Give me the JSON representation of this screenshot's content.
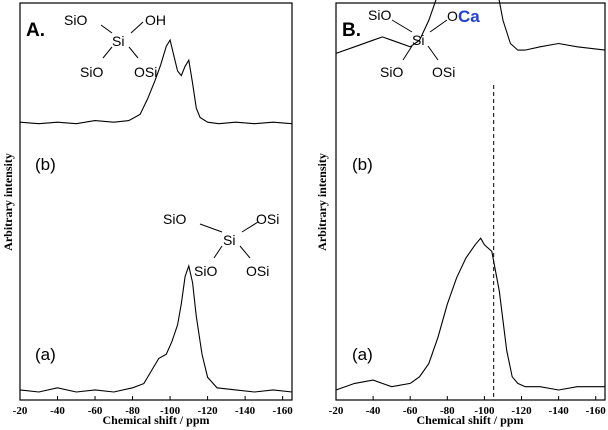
{
  "chart_data": [
    {
      "type": "line",
      "panel_label": "A.",
      "xlabel": "Chemical shift / ppm",
      "ylabel": "Arbitrary intensity",
      "xlim": [
        -20,
        -165
      ],
      "x_ticks": [
        -20,
        -40,
        -60,
        -80,
        -100,
        -120,
        -140,
        -160
      ],
      "series": [
        {
          "name": "(b)",
          "x": [
            -20,
            -30,
            -40,
            -50,
            -60,
            -70,
            -78,
            -84,
            -88,
            -92,
            -95,
            -98,
            -100,
            -102,
            -104,
            -106,
            -108,
            -110,
            -112,
            -114,
            -116,
            -120,
            -126,
            -135,
            -145,
            -155,
            -165
          ],
          "y": [
            0.47,
            0.46,
            0.47,
            0.46,
            0.48,
            0.47,
            0.48,
            0.52,
            0.62,
            0.74,
            0.84,
            0.96,
            1.0,
            0.9,
            0.8,
            0.77,
            0.83,
            0.87,
            0.72,
            0.56,
            0.5,
            0.47,
            0.46,
            0.47,
            0.46,
            0.47,
            0.46
          ]
        },
        {
          "name": "(a)",
          "x": [
            -20,
            -30,
            -40,
            -50,
            -60,
            -70,
            -80,
            -86,
            -90,
            -94,
            -98,
            -101,
            -104,
            -106,
            -108,
            -110,
            -112,
            -114,
            -117,
            -120,
            -125,
            -135,
            -145,
            -155,
            -165
          ],
          "y": [
            0.01,
            0.0,
            0.02,
            0.0,
            0.01,
            0.0,
            0.02,
            0.04,
            0.1,
            0.16,
            0.18,
            0.24,
            0.32,
            0.42,
            0.55,
            0.6,
            0.52,
            0.36,
            0.18,
            0.07,
            0.02,
            0.01,
            0.0,
            0.01,
            0.0
          ]
        }
      ],
      "structures": [
        {
          "bonds": [
            "SiO",
            "OH",
            "SiO",
            "OSi"
          ],
          "center": "Si"
        },
        {
          "bonds": [
            "SiO",
            "OSi",
            "SiO",
            "OSi"
          ],
          "center": "Si"
        }
      ]
    },
    {
      "type": "line",
      "panel_label": "B.",
      "xlabel": "Chemical shift / ppm",
      "ylabel": "Arbitrary intensity",
      "xlim": [
        -20,
        -165
      ],
      "x_ticks": [
        -20,
        -40,
        -60,
        -80,
        -100,
        -120,
        -140,
        -160
      ],
      "reference_line_x": -105,
      "series": [
        {
          "name": "(b)",
          "x": [
            -20,
            -30,
            -40,
            -45,
            -50,
            -60,
            -65,
            -70,
            -75,
            -80,
            -85,
            -90,
            -95,
            -98,
            -100,
            -103,
            -106,
            -110,
            -114,
            -118,
            -122,
            -130,
            -140,
            -150,
            -165
          ],
          "y": [
            0.52,
            0.54,
            0.56,
            0.57,
            0.56,
            0.54,
            0.56,
            0.62,
            0.7,
            0.8,
            0.9,
            0.98,
            1.0,
            0.99,
            0.96,
            0.86,
            0.74,
            0.62,
            0.55,
            0.53,
            0.53,
            0.54,
            0.55,
            0.54,
            0.53
          ]
        },
        {
          "name": "(a)",
          "x": [
            -20,
            -30,
            -40,
            -50,
            -60,
            -65,
            -70,
            -75,
            -80,
            -85,
            -90,
            -95,
            -98,
            -100,
            -104,
            -108,
            -112,
            -115,
            -118,
            -122,
            -130,
            -140,
            -150,
            -165
          ],
          "y": [
            0.0,
            0.02,
            0.03,
            0.01,
            0.02,
            0.04,
            0.08,
            0.16,
            0.26,
            0.34,
            0.4,
            0.44,
            0.46,
            0.44,
            0.42,
            0.3,
            0.12,
            0.04,
            0.02,
            0.01,
            0.01,
            0.0,
            0.01,
            0.01
          ]
        }
      ],
      "structure": {
        "bonds": [
          "SiO",
          "O",
          "SiO",
          "OSi"
        ],
        "center": "Si",
        "highlight": "Ca",
        "highlight_color": "#1f3fd8"
      }
    }
  ]
}
